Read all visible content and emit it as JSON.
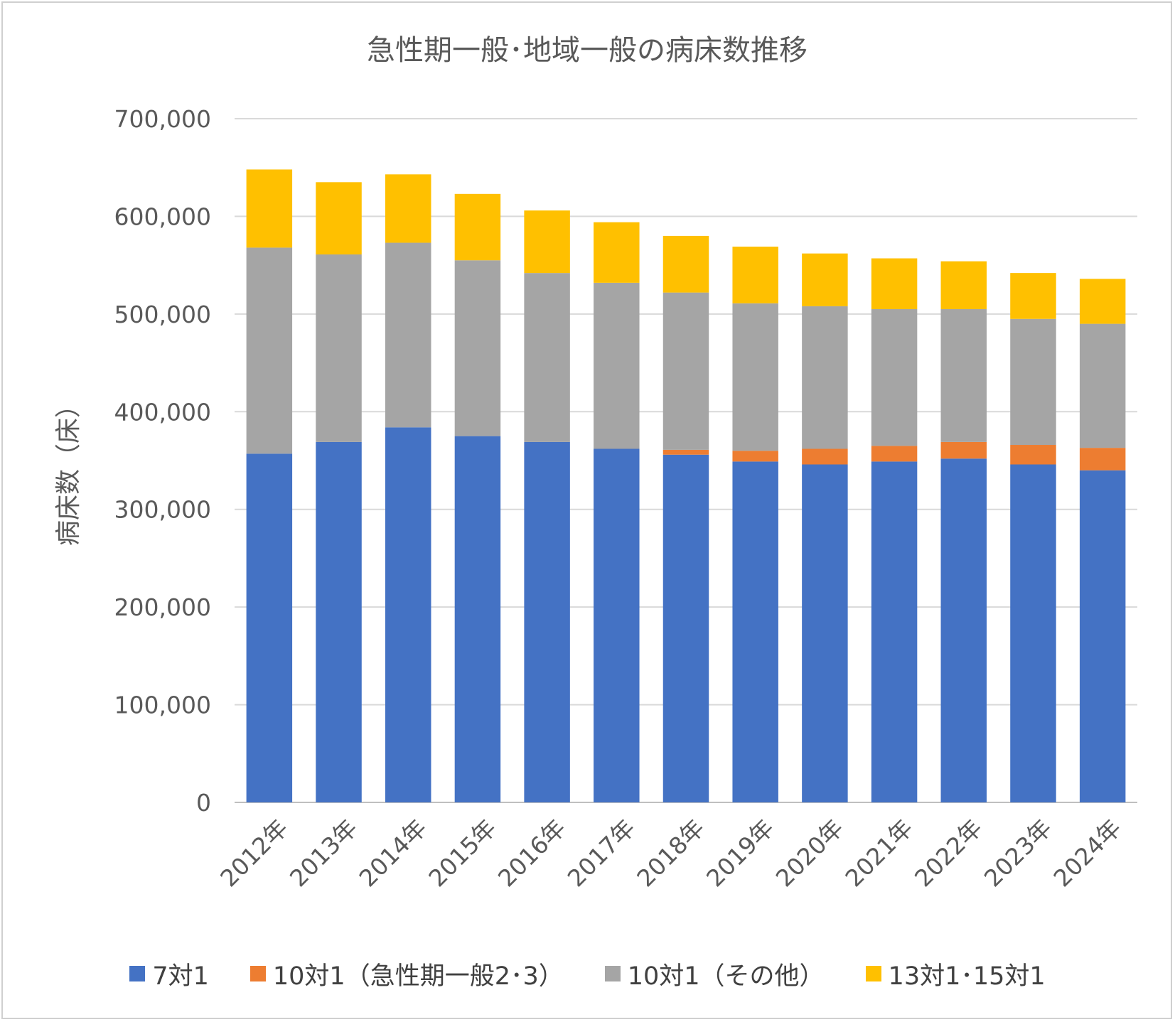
{
  "chart_data": {
    "type": "bar",
    "stacked": true,
    "title": "急性期一般･地域一般の病床数推移",
    "ylabel": "病床数（床）",
    "xlabel": "",
    "ylim": [
      0,
      700000
    ],
    "yticks": [
      "0",
      "100,000",
      "200,000",
      "300,000",
      "400,000",
      "500,000",
      "600,000",
      "700,000"
    ],
    "grid": true,
    "legend_position": "bottom",
    "categories": [
      "2012年",
      "2013年",
      "2014年",
      "2015年",
      "2016年",
      "2017年",
      "2018年",
      "2019年",
      "2020年",
      "2021年",
      "2022年",
      "2023年",
      "2024年"
    ],
    "series": [
      {
        "name": "7対1",
        "color": "#4472C4",
        "values": [
          357000,
          369000,
          384000,
          375000,
          369000,
          362000,
          356000,
          349000,
          346000,
          349000,
          352000,
          346000,
          340000
        ]
      },
      {
        "name": "10対1（急性期一般2･3）",
        "color": "#ED7D31",
        "values": [
          0,
          0,
          0,
          0,
          0,
          0,
          5000,
          11000,
          16000,
          16000,
          17000,
          20000,
          23000
        ]
      },
      {
        "name": "10対1（その他）",
        "color": "#A5A5A5",
        "values": [
          211000,
          192000,
          189000,
          180000,
          173000,
          170000,
          161000,
          151000,
          146000,
          140000,
          136000,
          129000,
          127000
        ]
      },
      {
        "name": "13対1･15対1",
        "color": "#FFC000",
        "values": [
          80000,
          74000,
          70000,
          68000,
          64000,
          62000,
          58000,
          58000,
          54000,
          52000,
          49000,
          47000,
          46000
        ]
      }
    ]
  }
}
